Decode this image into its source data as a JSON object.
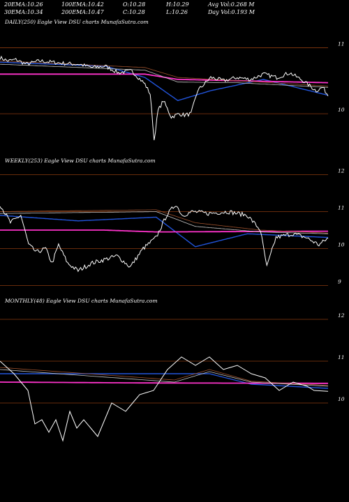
{
  "header": {
    "row1": [
      {
        "label": "20EMA:",
        "value": "10.26"
      },
      {
        "label": "100EMA:",
        "value": "10.42"
      },
      {
        "label": "O:",
        "value": "10.28"
      },
      {
        "label": "H:",
        "value": "10.29"
      },
      {
        "label": "Avg Vol:",
        "value": "0.268  M"
      }
    ],
    "row2": [
      {
        "label": "30EMA:",
        "value": "10.34"
      },
      {
        "label": "200EMA:",
        "value": "10.47"
      },
      {
        "label": "C:",
        "value": "10.28"
      },
      {
        "label": "L:",
        "value": "10.26"
      },
      {
        "label": "Day Vol:",
        "value": "0.193  M"
      }
    ]
  },
  "colors": {
    "background": "#000000",
    "gridline": "#8b3a0f",
    "price": "#ffffff",
    "ema_fast": "#2255dd",
    "ema_slow": "#ff33cc",
    "ema_mid": "#c9c9c9",
    "ema_brown": "#a0522d"
  },
  "chart_data": [
    {
      "type": "line",
      "title": "DAILY(250) Eagle  View  DSU charts MunafaSutra.com",
      "yticks": [
        11,
        10
      ],
      "ylim": [
        9.4,
        11.3
      ],
      "n": 250,
      "price_knots": [
        [
          0,
          10.85
        ],
        [
          6,
          10.8
        ],
        [
          12,
          10.82
        ],
        [
          20,
          10.75
        ],
        [
          30,
          10.8
        ],
        [
          40,
          10.78
        ],
        [
          50,
          10.76
        ],
        [
          60,
          10.75
        ],
        [
          70,
          10.7
        ],
        [
          80,
          10.72
        ],
        [
          90,
          10.62
        ],
        [
          100,
          10.65
        ],
        [
          110,
          10.45
        ],
        [
          114,
          10.3
        ],
        [
          117,
          9.6
        ],
        [
          120,
          10.05
        ],
        [
          124,
          10.2
        ],
        [
          130,
          9.95
        ],
        [
          136,
          10.0
        ],
        [
          140,
          9.98
        ],
        [
          145,
          10.0
        ],
        [
          150,
          10.35
        ],
        [
          160,
          10.55
        ],
        [
          170,
          10.5
        ],
        [
          180,
          10.55
        ],
        [
          190,
          10.52
        ],
        [
          200,
          10.6
        ],
        [
          210,
          10.55
        ],
        [
          220,
          10.62
        ],
        [
          230,
          10.5
        ],
        [
          240,
          10.35
        ],
        [
          245,
          10.4
        ],
        [
          249,
          10.28
        ]
      ],
      "noise": 0.03,
      "emas": [
        {
          "key": "ema_fast",
          "knots": [
            [
              0,
              10.78
            ],
            [
              80,
              10.72
            ],
            [
              110,
              10.55
            ],
            [
              135,
              10.2
            ],
            [
              160,
              10.35
            ],
            [
              200,
              10.52
            ],
            [
              249,
              10.28
            ]
          ]
        },
        {
          "key": "ema_slow",
          "knots": [
            [
              0,
              10.6
            ],
            [
              110,
              10.6
            ],
            [
              135,
              10.52
            ],
            [
              249,
              10.47
            ]
          ]
        },
        {
          "key": "ema_mid",
          "knots": [
            [
              0,
              10.75
            ],
            [
              110,
              10.66
            ],
            [
              135,
              10.48
            ],
            [
              180,
              10.47
            ],
            [
              249,
              10.4
            ]
          ]
        },
        {
          "key": "ema_brown",
          "knots": [
            [
              0,
              10.8
            ],
            [
              110,
              10.7
            ],
            [
              135,
              10.55
            ],
            [
              180,
              10.5
            ],
            [
              249,
              10.42
            ]
          ]
        }
      ]
    },
    {
      "type": "line",
      "title": "WEEKLY(253) Eagle  View  DSU charts MunafaSutra.com",
      "yticks": [
        12,
        11,
        10,
        9
      ],
      "ylim": [
        8.8,
        12.2
      ],
      "n": 253,
      "price_knots": [
        [
          0,
          11.2
        ],
        [
          8,
          10.7
        ],
        [
          16,
          10.9
        ],
        [
          22,
          10.1
        ],
        [
          28,
          9.9
        ],
        [
          35,
          10.0
        ],
        [
          40,
          9.6
        ],
        [
          45,
          10.1
        ],
        [
          52,
          9.6
        ],
        [
          60,
          9.4
        ],
        [
          70,
          9.6
        ],
        [
          80,
          9.7
        ],
        [
          90,
          9.8
        ],
        [
          100,
          9.5
        ],
        [
          110,
          10.0
        ],
        [
          120,
          10.3
        ],
        [
          128,
          10.9
        ],
        [
          135,
          11.2
        ],
        [
          140,
          10.9
        ],
        [
          148,
          11.0
        ],
        [
          160,
          10.95
        ],
        [
          175,
          11.0
        ],
        [
          190,
          10.9
        ],
        [
          200,
          10.5
        ],
        [
          205,
          9.5
        ],
        [
          212,
          10.3
        ],
        [
          225,
          10.4
        ],
        [
          235,
          10.3
        ],
        [
          245,
          10.1
        ],
        [
          252,
          10.28
        ]
      ],
      "noise": 0.06,
      "emas": [
        {
          "key": "ema_fast",
          "knots": [
            [
              0,
              10.9
            ],
            [
              60,
              10.75
            ],
            [
              120,
              10.85
            ],
            [
              150,
              10.05
            ],
            [
              190,
              10.4
            ],
            [
              252,
              10.3
            ]
          ]
        },
        {
          "key": "ema_slow",
          "knots": [
            [
              0,
              10.5
            ],
            [
              80,
              10.5
            ],
            [
              120,
              10.45
            ],
            [
              252,
              10.47
            ]
          ]
        },
        {
          "key": "ema_mid",
          "knots": [
            [
              0,
              10.95
            ],
            [
              120,
              11.0
            ],
            [
              150,
              10.6
            ],
            [
              200,
              10.45
            ],
            [
              252,
              10.4
            ]
          ]
        },
        {
          "key": "ema_brown",
          "knots": [
            [
              0,
              11.0
            ],
            [
              120,
              11.05
            ],
            [
              150,
              10.7
            ],
            [
              200,
              10.5
            ],
            [
              252,
              10.42
            ]
          ]
        }
      ]
    },
    {
      "type": "line",
      "title": "MONTHLY(48) Eagle  View  DSU charts MunafaSutra.com",
      "yticks": [
        12,
        11,
        10
      ],
      "ylim": [
        9.3,
        12.3
      ],
      "n": 48,
      "price_knots": [
        [
          0,
          11.0
        ],
        [
          2,
          10.7
        ],
        [
          4,
          10.3
        ],
        [
          5,
          9.5
        ],
        [
          6,
          9.6
        ],
        [
          7,
          9.3
        ],
        [
          8,
          9.6
        ],
        [
          9,
          9.1
        ],
        [
          10,
          9.8
        ],
        [
          11,
          9.4
        ],
        [
          12,
          9.6
        ],
        [
          14,
          9.2
        ],
        [
          16,
          10.0
        ],
        [
          18,
          9.8
        ],
        [
          20,
          10.2
        ],
        [
          22,
          10.3
        ],
        [
          24,
          10.8
        ],
        [
          26,
          11.1
        ],
        [
          28,
          10.9
        ],
        [
          30,
          11.1
        ],
        [
          32,
          10.8
        ],
        [
          34,
          10.9
        ],
        [
          36,
          10.7
        ],
        [
          38,
          10.6
        ],
        [
          40,
          10.3
        ],
        [
          42,
          10.5
        ],
        [
          44,
          10.4
        ],
        [
          45,
          10.3
        ],
        [
          47,
          10.28
        ]
      ],
      "noise": 0,
      "emas": [
        {
          "key": "ema_fast",
          "knots": [
            [
              0,
              10.7
            ],
            [
              30,
              10.7
            ],
            [
              36,
              10.45
            ],
            [
              47,
              10.35
            ]
          ]
        },
        {
          "key": "ema_slow",
          "knots": [
            [
              0,
              10.5
            ],
            [
              20,
              10.48
            ],
            [
              47,
              10.47
            ]
          ]
        },
        {
          "key": "ema_mid",
          "knots": [
            [
              0,
              10.8
            ],
            [
              25,
              10.5
            ],
            [
              30,
              10.75
            ],
            [
              36,
              10.5
            ],
            [
              47,
              10.4
            ]
          ]
        },
        {
          "key": "ema_brown",
          "knots": [
            [
              0,
              10.85
            ],
            [
              25,
              10.55
            ],
            [
              30,
              10.8
            ],
            [
              36,
              10.52
            ],
            [
              47,
              10.42
            ]
          ]
        }
      ]
    }
  ]
}
